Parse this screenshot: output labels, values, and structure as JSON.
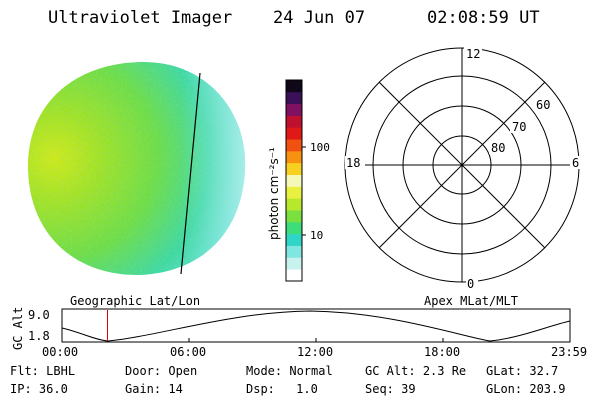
{
  "header": {
    "instrument": "Ultraviolet Imager",
    "date": "24 Jun 07",
    "time": "02:08:59 UT"
  },
  "colorbar": {
    "unit_label": "photon cm⁻²s⁻¹",
    "ticks": [
      "100",
      "10"
    ],
    "colors": [
      "#ffffff",
      "#c8f2ee",
      "#7fe6e0",
      "#2fd6c8",
      "#3cdd7a",
      "#7ae040",
      "#b8e82c",
      "#eaf040",
      "#f6f8b8",
      "#f8d020",
      "#f89010",
      "#f05010",
      "#e01818",
      "#c01030",
      "#801060",
      "#3a1058",
      "#100818"
    ]
  },
  "polar_plot": {
    "mlt_labels": [
      "12",
      "18",
      "6",
      "0"
    ],
    "lat_labels": [
      "60",
      "70",
      "80"
    ]
  },
  "orbit": {
    "left_title": "Geographic Lat/Lon",
    "right_title": "Apex MLat/MLT",
    "axis_label": "GC Alt",
    "y_ticks": [
      "9.0",
      "1.8"
    ],
    "x_ticks": [
      "00:00",
      "06:00",
      "12:00",
      "18:00",
      "23:59"
    ],
    "current_time_hours": 2.15
  },
  "info": {
    "row1": [
      {
        "label": "Flt:",
        "value": "LBHL"
      },
      {
        "label": "Door:",
        "value": "Open"
      },
      {
        "label": "Mode:",
        "value": "Normal"
      },
      {
        "label": "GC Alt:",
        "value": "2.3 Re"
      },
      {
        "label": "GLat:",
        "value": "32.7"
      }
    ],
    "row2": [
      {
        "label": "IP:",
        "value": "36.0"
      },
      {
        "label": "Gain:",
        "value": "14"
      },
      {
        "label": "Dsp:",
        "value": "1.0"
      },
      {
        "label": "Seq:",
        "value": "39"
      },
      {
        "label": "GLon:",
        "value": "203.9"
      }
    ]
  }
}
